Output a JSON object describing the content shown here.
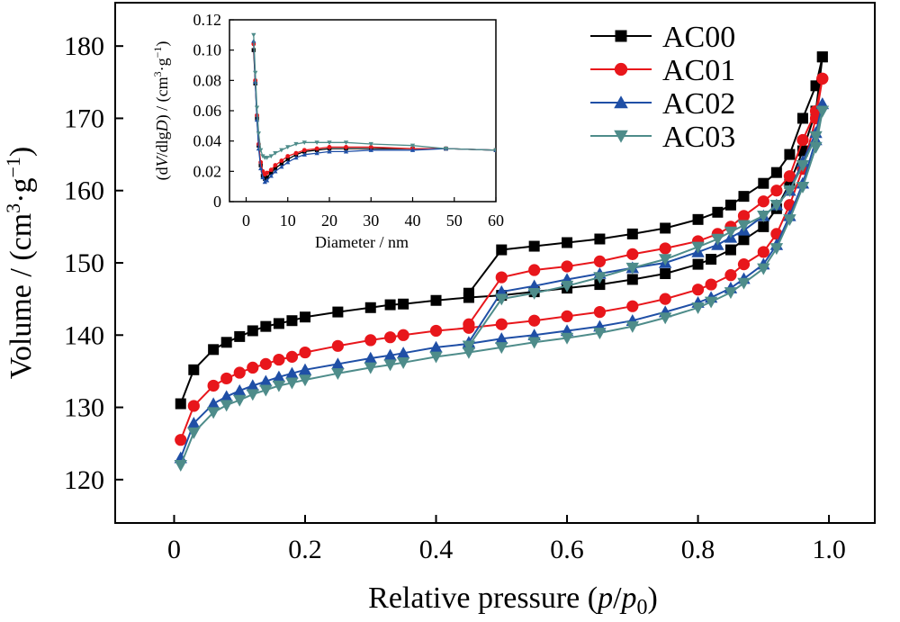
{
  "chart_data": [
    {
      "type": "line",
      "title": "",
      "xlabel_main": "Relative pressure (",
      "xlabel_p": "p",
      "xlabel_slash": "/",
      "xlabel_p0": "p",
      "xlabel_p0_sub": "0",
      "xlabel_close": ")",
      "ylabel_main": "Volume / (cm",
      "ylabel_sup3": "3",
      "ylabel_g": "·g",
      "ylabel_supm1": "−1",
      "ylabel_close": ")",
      "xlim": [
        -0.09,
        1.07
      ],
      "ylim": [
        114,
        186
      ],
      "xticks": [
        0,
        0.2,
        0.4,
        0.6,
        0.8,
        1.0
      ],
      "xtick_labels": [
        "0",
        "0.2",
        "0.4",
        "0.6",
        "0.8",
        "1.0"
      ],
      "yticks": [
        120,
        130,
        140,
        150,
        160,
        170,
        180
      ],
      "ytick_labels": [
        "120",
        "130",
        "140",
        "150",
        "160",
        "170",
        "180"
      ],
      "legend_position": "top-right",
      "series": [
        {
          "name": "AC00",
          "color": "#000000",
          "marker": "square",
          "adsorption": {
            "x": [
              0.01,
              0.03,
              0.06,
              0.08,
              0.1,
              0.12,
              0.14,
              0.16,
              0.18,
              0.2,
              0.25,
              0.3,
              0.33,
              0.35,
              0.4,
              0.45,
              0.5,
              0.55,
              0.6,
              0.65,
              0.7,
              0.75,
              0.8,
              0.82,
              0.85,
              0.87,
              0.9,
              0.92,
              0.94,
              0.96,
              0.98,
              0.99
            ],
            "y": [
              130.5,
              135.2,
              138.0,
              139.0,
              139.8,
              140.6,
              141.2,
              141.6,
              142.0,
              142.5,
              143.2,
              143.8,
              144.2,
              144.3,
              144.8,
              145.2,
              145.5,
              146.0,
              146.5,
              147.0,
              147.7,
              148.5,
              149.8,
              150.5,
              151.8,
              153.2,
              155.0,
              157.5,
              161.0,
              165.5,
              171.0,
              178.5
            ]
          },
          "desorption": {
            "x": [
              0.99,
              0.98,
              0.96,
              0.94,
              0.92,
              0.9,
              0.87,
              0.85,
              0.83,
              0.8,
              0.75,
              0.7,
              0.65,
              0.6,
              0.55,
              0.5,
              0.45
            ],
            "y": [
              178.5,
              174.5,
              170.0,
              165.0,
              162.5,
              161.0,
              159.2,
              158.0,
              157.0,
              156.0,
              154.8,
              154.0,
              153.3,
              152.8,
              152.3,
              151.8,
              145.8
            ]
          }
        },
        {
          "name": "AC01",
          "color": "#e8161b",
          "marker": "circle",
          "adsorption": {
            "x": [
              0.01,
              0.03,
              0.06,
              0.08,
              0.1,
              0.12,
              0.14,
              0.16,
              0.18,
              0.2,
              0.25,
              0.3,
              0.33,
              0.35,
              0.4,
              0.45,
              0.5,
              0.55,
              0.6,
              0.65,
              0.7,
              0.75,
              0.8,
              0.82,
              0.85,
              0.87,
              0.9,
              0.92,
              0.94,
              0.96,
              0.98,
              0.99
            ],
            "y": [
              125.5,
              130.2,
              133.0,
              134.0,
              134.8,
              135.5,
              136.0,
              136.6,
              137.0,
              137.6,
              138.5,
              139.3,
              139.7,
              140.0,
              140.6,
              141.0,
              141.5,
              142.0,
              142.6,
              143.2,
              144.0,
              145.0,
              146.3,
              147.0,
              148.3,
              149.8,
              151.5,
              154.0,
              158.0,
              163.0,
              170.0,
              175.5
            ]
          },
          "desorption": {
            "x": [
              0.99,
              0.98,
              0.96,
              0.94,
              0.92,
              0.9,
              0.87,
              0.85,
              0.83,
              0.8,
              0.75,
              0.7,
              0.65,
              0.6,
              0.55,
              0.5,
              0.45
            ],
            "y": [
              175.5,
              171.0,
              167.0,
              162.0,
              160.0,
              158.5,
              156.5,
              155.0,
              154.0,
              153.0,
              152.0,
              151.2,
              150.2,
              149.5,
              149.0,
              148.0,
              141.5
            ]
          }
        },
        {
          "name": "AC02",
          "color": "#1f4fa6",
          "marker": "triangle-up",
          "adsorption": {
            "x": [
              0.01,
              0.03,
              0.06,
              0.08,
              0.1,
              0.12,
              0.14,
              0.16,
              0.18,
              0.2,
              0.25,
              0.3,
              0.33,
              0.35,
              0.4,
              0.45,
              0.5,
              0.55,
              0.6,
              0.65,
              0.7,
              0.75,
              0.8,
              0.82,
              0.85,
              0.87,
              0.9,
              0.92,
              0.94,
              0.96,
              0.98,
              0.99
            ],
            "y": [
              123.0,
              127.8,
              130.5,
              131.5,
              132.3,
              133.0,
              133.6,
              134.2,
              134.7,
              135.2,
              136.0,
              136.8,
              137.2,
              137.5,
              138.3,
              138.8,
              139.5,
              140.0,
              140.6,
              141.2,
              142.0,
              143.2,
              144.5,
              145.2,
              146.5,
              147.8,
              149.8,
              152.5,
              156.5,
              161.0,
              167.0,
              172.0
            ]
          },
          "desorption": {
            "x": [
              0.99,
              0.98,
              0.96,
              0.94,
              0.92,
              0.9,
              0.87,
              0.85,
              0.83,
              0.8,
              0.75,
              0.7,
              0.65,
              0.6,
              0.55,
              0.5,
              0.45
            ],
            "y": [
              172.0,
              168.0,
              164.0,
              160.0,
              158.0,
              156.5,
              154.5,
              153.5,
              152.5,
              151.5,
              150.0,
              149.3,
              148.5,
              147.7,
              146.8,
              146.0,
              139.0
            ]
          }
        },
        {
          "name": "AC03",
          "color": "#4e8c8a",
          "marker": "triangle-down",
          "adsorption": {
            "x": [
              0.01,
              0.03,
              0.06,
              0.08,
              0.1,
              0.12,
              0.14,
              0.16,
              0.18,
              0.2,
              0.25,
              0.3,
              0.33,
              0.35,
              0.4,
              0.45,
              0.5,
              0.55,
              0.6,
              0.65,
              0.7,
              0.75,
              0.8,
              0.82,
              0.85,
              0.87,
              0.9,
              0.92,
              0.94,
              0.96,
              0.98,
              0.99
            ],
            "y": [
              122.0,
              126.5,
              129.3,
              130.3,
              131.0,
              131.8,
              132.4,
              133.0,
              133.4,
              133.8,
              134.7,
              135.5,
              135.9,
              136.2,
              137.0,
              137.6,
              138.3,
              139.0,
              139.6,
              140.3,
              141.2,
              142.4,
              143.8,
              144.6,
              145.9,
              147.2,
              149.2,
              152.0,
              156.0,
              160.5,
              166.0,
              171.0
            ]
          },
          "desorption": {
            "x": [
              0.99,
              0.98,
              0.96,
              0.94,
              0.92,
              0.9,
              0.87,
              0.85,
              0.83,
              0.8,
              0.75,
              0.7,
              0.65,
              0.6,
              0.55,
              0.5,
              0.45
            ],
            "y": [
              171.0,
              167.5,
              163.5,
              160.0,
              158.0,
              156.5,
              155.2,
              154.3,
              153.3,
              152.2,
              150.5,
              149.3,
              148.0,
              146.8,
              145.8,
              145.0,
              138.5
            ]
          }
        }
      ]
    },
    {
      "type": "line",
      "title": "",
      "xlabel": "Diameter / nm",
      "ylabel_open": "(d",
      "ylabel_V": "V",
      "ylabel_dlg": "/dlg",
      "ylabel_D": "D",
      "ylabel_mid": ") / (cm",
      "ylabel_sup3": "3",
      "ylabel_g": "·g",
      "ylabel_supm1": "−1",
      "ylabel_close": ")",
      "xlim": [
        -4,
        60
      ],
      "ylim": [
        0,
        0.12
      ],
      "xticks": [
        0,
        10,
        20,
        30,
        40,
        50,
        60
      ],
      "xtick_labels": [
        "0",
        "10",
        "20",
        "30",
        "40",
        "50",
        "60"
      ],
      "yticks": [
        0,
        0.02,
        0.04,
        0.06,
        0.08,
        0.1,
        0.12
      ],
      "ytick_labels": [
        "0",
        "0.02",
        "0.04",
        "0.06",
        "0.08",
        "0.10",
        "0.12"
      ],
      "series": [
        {
          "name": "AC00",
          "color": "#000000",
          "x": [
            1.8,
            2.2,
            2.6,
            3.0,
            3.5,
            4.0,
            4.5,
            5.0,
            6.0,
            7.0,
            8.5,
            10,
            12,
            14,
            17,
            20,
            24,
            30,
            40,
            48,
            60
          ],
          "y": [
            0.1,
            0.078,
            0.055,
            0.037,
            0.024,
            0.017,
            0.015,
            0.016,
            0.019,
            0.022,
            0.025,
            0.028,
            0.031,
            0.033,
            0.034,
            0.035,
            0.035,
            0.035,
            0.035,
            0.035,
            0.034
          ]
        },
        {
          "name": "AC01",
          "color": "#e8161b",
          "x": [
            1.8,
            2.2,
            2.6,
            3.0,
            3.5,
            4.0,
            4.5,
            5.0,
            6.0,
            7.0,
            8.5,
            10,
            12,
            14,
            17,
            20,
            24,
            30,
            40,
            48,
            60
          ],
          "y": [
            0.104,
            0.08,
            0.057,
            0.038,
            0.026,
            0.02,
            0.018,
            0.019,
            0.021,
            0.024,
            0.027,
            0.03,
            0.032,
            0.034,
            0.035,
            0.036,
            0.036,
            0.036,
            0.035,
            0.035,
            0.034
          ]
        },
        {
          "name": "AC02",
          "color": "#1f4fa6",
          "x": [
            1.8,
            2.2,
            2.6,
            3.0,
            3.5,
            4.0,
            4.5,
            5.0,
            6.0,
            7.0,
            8.5,
            10,
            12,
            14,
            17,
            20,
            24,
            30,
            40,
            48,
            60
          ],
          "y": [
            0.106,
            0.079,
            0.054,
            0.035,
            0.022,
            0.016,
            0.013,
            0.014,
            0.017,
            0.02,
            0.023,
            0.026,
            0.029,
            0.031,
            0.032,
            0.033,
            0.033,
            0.034,
            0.034,
            0.035,
            0.034
          ]
        },
        {
          "name": "AC03",
          "color": "#4e8c8a",
          "x": [
            1.8,
            2.2,
            2.6,
            3.0,
            3.5,
            4.0,
            4.5,
            5.0,
            6.0,
            7.0,
            8.5,
            10,
            12,
            14,
            17,
            20,
            24,
            30,
            40,
            48,
            60
          ],
          "y": [
            0.11,
            0.085,
            0.062,
            0.045,
            0.034,
            0.03,
            0.029,
            0.029,
            0.03,
            0.032,
            0.034,
            0.036,
            0.038,
            0.039,
            0.039,
            0.039,
            0.039,
            0.038,
            0.037,
            0.035,
            0.034
          ]
        }
      ]
    }
  ]
}
